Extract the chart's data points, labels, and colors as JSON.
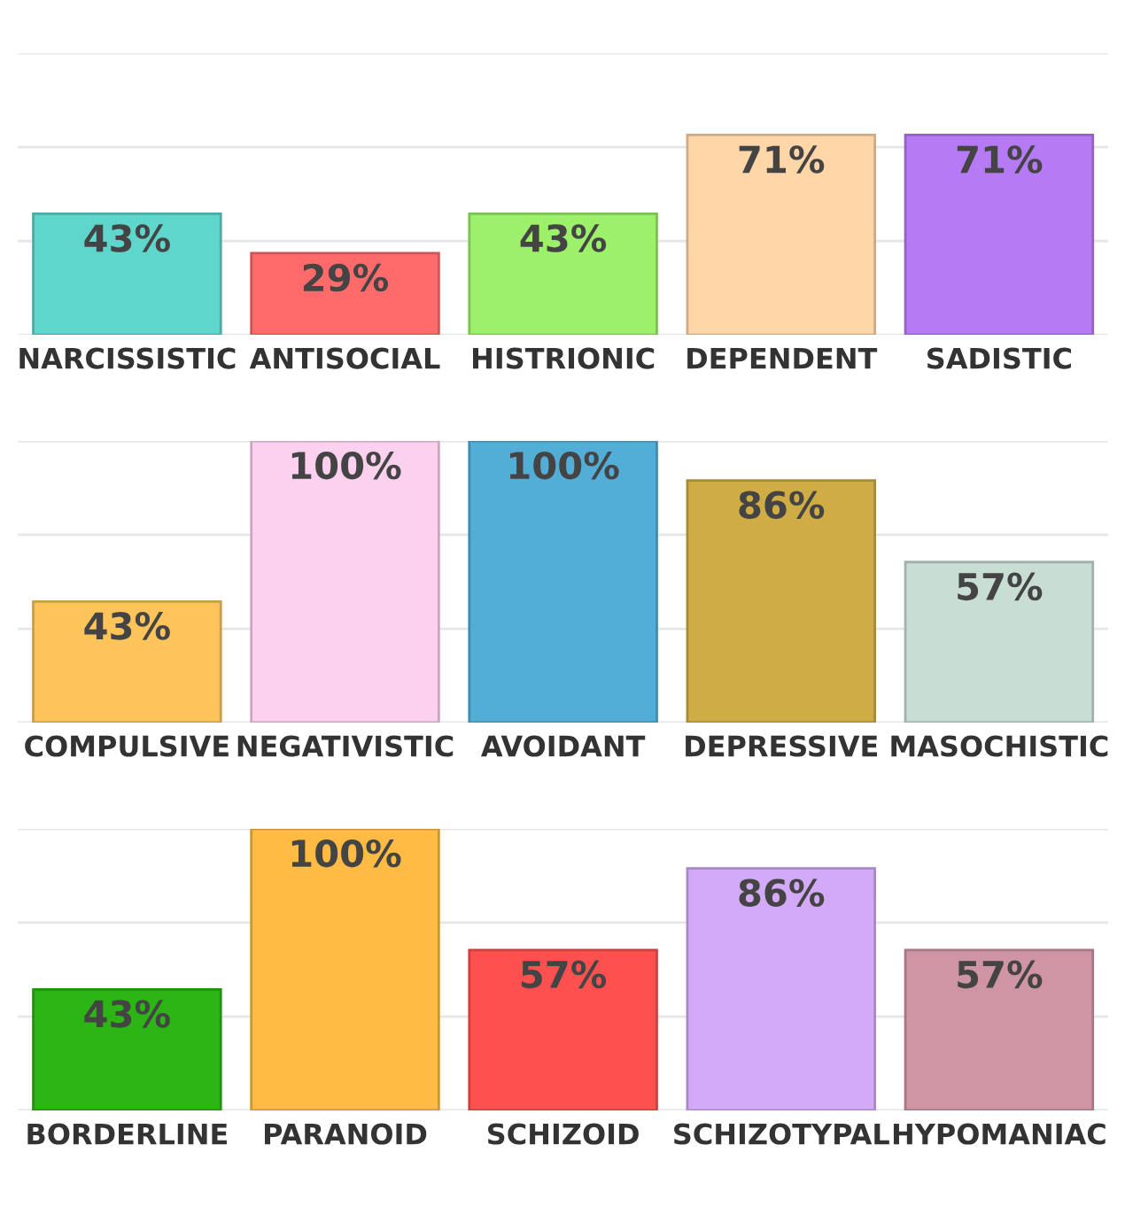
{
  "chart_data": [
    {
      "type": "bar",
      "categories": [
        "NARCISSISTIC",
        "ANTISOCIAL",
        "HISTRIONIC",
        "DEPENDENT",
        "SADISTIC"
      ],
      "values": [
        43,
        29,
        43,
        71,
        71
      ],
      "value_labels": [
        "43%",
        "29%",
        "43%",
        "71%",
        "71%"
      ],
      "colors": [
        "#5fd6cc",
        "#ff6b6b",
        "#9cf06a",
        "#ffd6a8",
        "#b77af5"
      ],
      "ylim": [
        0,
        100
      ],
      "yticks": [
        {
          "value": 0,
          "label": null
        },
        {
          "value": 33.3,
          "label": null
        },
        {
          "value": 66.7,
          "label": null
        },
        {
          "value": 100,
          "label": null
        }
      ],
      "tick_labels": "x",
      "grid": "y"
    },
    {
      "type": "bar",
      "categories": [
        "COMPULSIVE",
        "NEGATIVISTIC",
        "AVOIDANT",
        "DEPRESSIVE",
        "MASOCHISTIC"
      ],
      "values": [
        43,
        100,
        100,
        86,
        57
      ],
      "value_labels": [
        "43%",
        "100%",
        "100%",
        "86%",
        "57%"
      ],
      "colors": [
        "#fdc45a",
        "#fcd0ef",
        "#52aed6",
        "#d0ac45",
        "#c8ded5"
      ],
      "ylim": [
        0,
        100
      ],
      "yticks": [
        {
          "value": 0,
          "label": null
        },
        {
          "value": 33.3,
          "label": null
        },
        {
          "value": 66.7,
          "label": null
        },
        {
          "value": 100,
          "label": null
        }
      ],
      "tick_labels": "x",
      "grid": "y"
    },
    {
      "type": "bar",
      "categories": [
        "BORDERLINE",
        "PARANOID",
        "SCHIZOID",
        "SCHIZOTYPAL",
        "HYPOMANIAC"
      ],
      "values": [
        43,
        100,
        57,
        86,
        57
      ],
      "value_labels": [
        "43%",
        "100%",
        "57%",
        "86%",
        "57%"
      ],
      "colors": [
        "#2db515",
        "#ffbb44",
        "#ff5050",
        "#d2aaf7",
        "#d095a5"
      ],
      "ylim": [
        0,
        100
      ],
      "yticks": [
        {
          "value": 0,
          "label": null
        },
        {
          "value": 33.3,
          "label": null
        },
        {
          "value": 66.7,
          "label": null
        },
        {
          "value": 100,
          "label": null
        }
      ],
      "tick_labels": "x",
      "grid": "y"
    }
  ]
}
